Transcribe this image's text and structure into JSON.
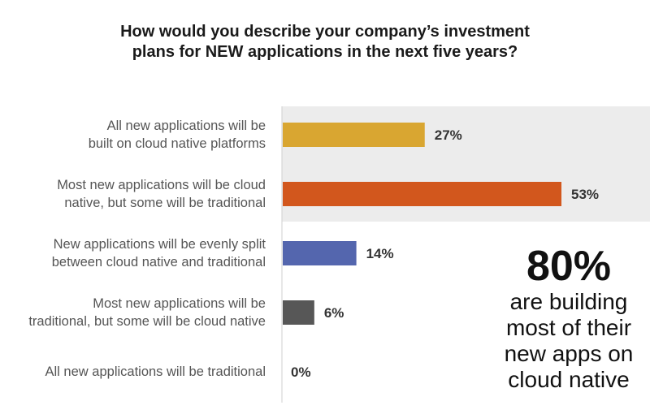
{
  "title": {
    "line1": "How would you describe your company’s investment",
    "line2": "plans for NEW applications in the next five years?"
  },
  "chart_data": {
    "type": "bar",
    "orientation": "horizontal",
    "categories": [
      [
        "All new applications will be",
        "built on cloud native platforms"
      ],
      [
        "Most new applications will be cloud",
        "native, but some will be traditional"
      ],
      [
        "New applications will be evenly split",
        "between cloud native and traditional"
      ],
      [
        "Most new applications will be",
        "traditional, but some will be cloud native"
      ],
      [
        "All new applications will be traditional"
      ]
    ],
    "values": [
      27,
      53,
      14,
      6,
      0
    ],
    "value_labels": [
      "27%",
      "53%",
      "14%",
      "6%",
      "0%"
    ],
    "colors": [
      "#D9A631",
      "#D2571D",
      "#5466AE",
      "#575757",
      "#575757"
    ],
    "highlight_background": "#ECECEC",
    "highlighted_categories": [
      0,
      1
    ],
    "xlim": [
      0,
      53
    ],
    "grid": false
  },
  "callout": {
    "big": "80%",
    "lines": [
      "are building",
      "most of their",
      "new apps on",
      "cloud native"
    ]
  }
}
